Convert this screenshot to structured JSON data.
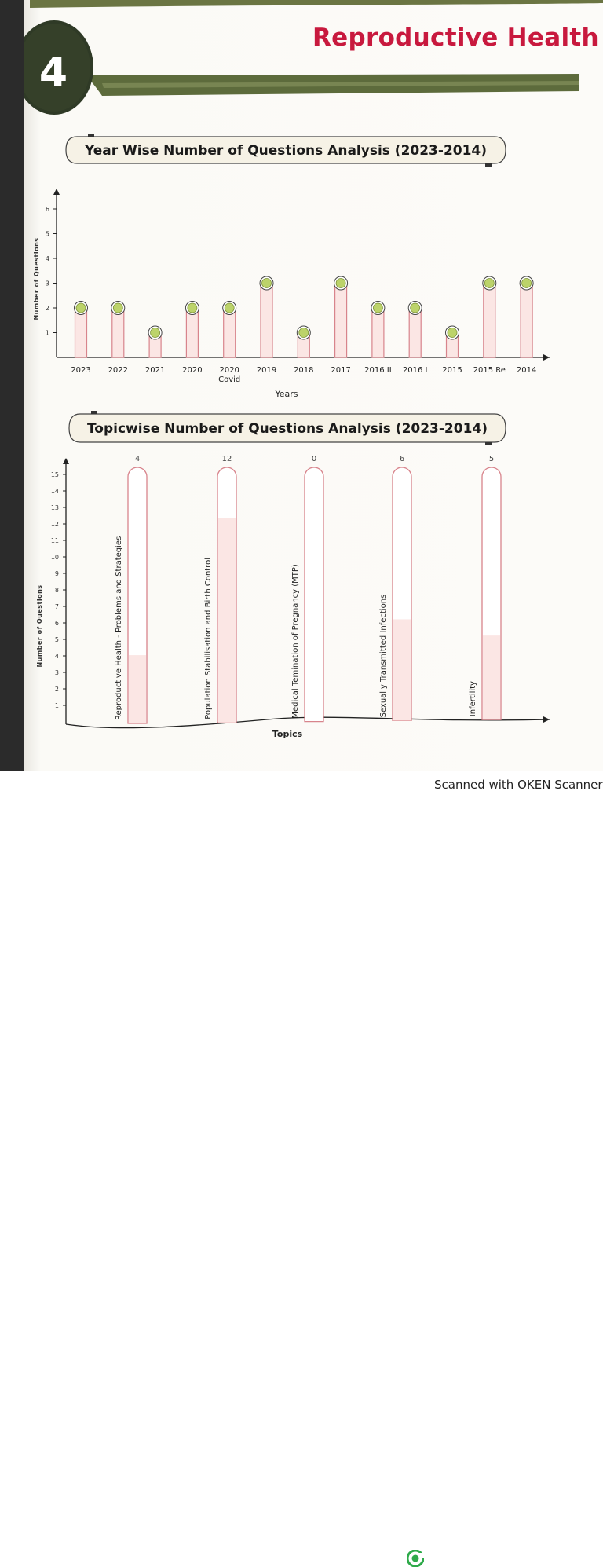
{
  "header": {
    "chapter_number": "4",
    "chapter_title": "Reproductive Health"
  },
  "footer": {
    "scanner_text": "Scanned with OKEN Scanner"
  },
  "colors": {
    "title_red": "#c8193e",
    "bar_fill": "#fbe6e4",
    "bar_stroke": "#d8848c",
    "dot_fill": "#bcd36a",
    "band_green": "#5d6b3c"
  },
  "chart_data": [
    {
      "type": "bar",
      "title": "Year Wise Number of Questions Analysis (2023-2014)",
      "xlabel": "Years",
      "ylabel": "Number of Questions",
      "ylim": [
        0,
        6
      ],
      "yticks": [
        "1",
        "2",
        "3",
        "4",
        "5",
        "6"
      ],
      "categories": [
        "2023",
        "2022",
        "2021",
        "2020",
        "2020 Covid",
        "2019",
        "2018",
        "2017",
        "2016 II",
        "2016 I",
        "2015",
        "2015 Re",
        "2014"
      ],
      "category_lines": [
        [
          "2023"
        ],
        [
          "2022"
        ],
        [
          "2021"
        ],
        [
          "2020"
        ],
        [
          "2020",
          "Covid"
        ],
        [
          "2019"
        ],
        [
          "2018"
        ],
        [
          "2017"
        ],
        [
          "2016 II"
        ],
        [
          "2016 I"
        ],
        [
          "2015"
        ],
        [
          "2015 Re"
        ],
        [
          "2014"
        ]
      ],
      "values": [
        2,
        2,
        1,
        2,
        2,
        3,
        1,
        3,
        2,
        2,
        1,
        3,
        3
      ],
      "grid": false
    },
    {
      "type": "bar",
      "title": "Topicwise Number of Questions Analysis (2023-2014)",
      "xlabel": "Topics",
      "ylabel": "Number of Questions",
      "ylim": [
        0,
        15
      ],
      "yticks": [
        "1",
        "2",
        "3",
        "4",
        "5",
        "6",
        "7",
        "8",
        "9",
        "10",
        "11",
        "12",
        "13",
        "14",
        "15"
      ],
      "categories": [
        "Reproductive Health - Problems and Strategies",
        "Population Stabilisation and Birth Control",
        "Medical Temination of Pregnancy (MTP)",
        "Sexually Transmitted Infections",
        "Infertility"
      ],
      "values": [
        4,
        12,
        0,
        6,
        5
      ],
      "data_labels": [
        "4",
        "12",
        "0",
        "6",
        "5"
      ],
      "grid": false
    }
  ]
}
